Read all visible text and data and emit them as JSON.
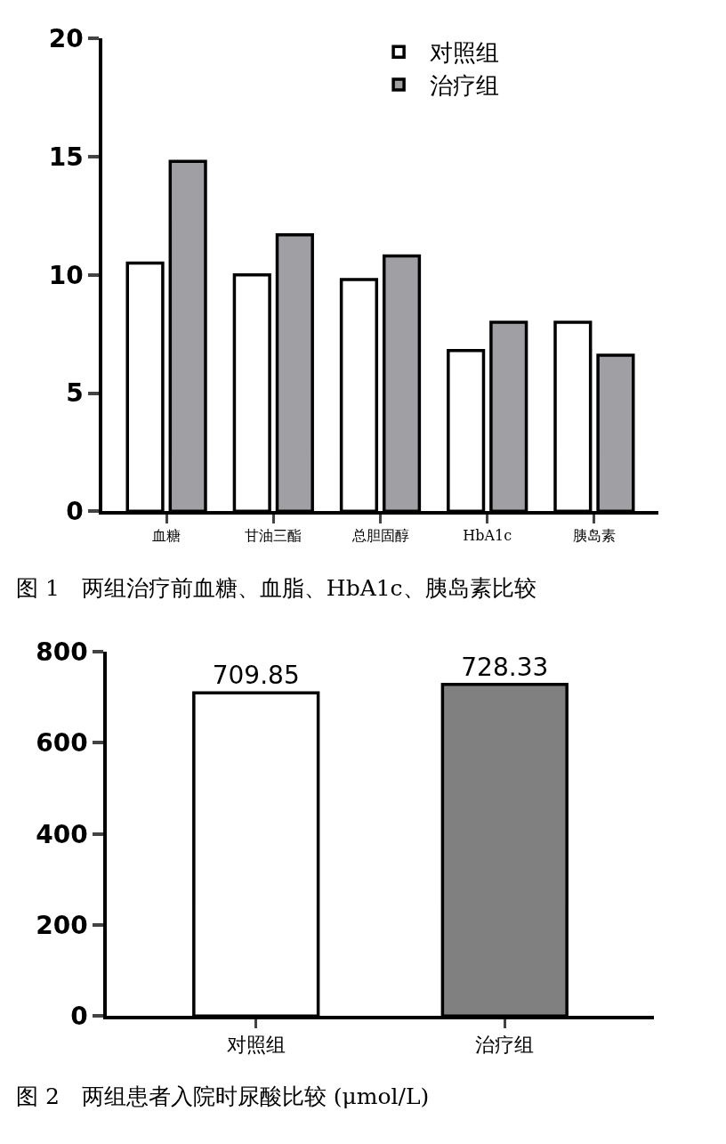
{
  "chart_data": [
    {
      "type": "bar",
      "categories": [
        "血糖",
        "甘油三酯",
        "总胆固醇",
        "HbA1c",
        "胰岛素"
      ],
      "series": [
        {
          "name": "对照组",
          "color": "#ffffff",
          "values": [
            10.5,
            10.0,
            9.8,
            6.8,
            8.0
          ]
        },
        {
          "name": "治疗组",
          "color": "#a0a0a4",
          "values": [
            14.8,
            11.7,
            10.8,
            8.0,
            6.6
          ]
        }
      ],
      "ylim": [
        0,
        20
      ],
      "yticks": [
        0,
        5,
        10,
        15,
        20
      ],
      "legend": "top",
      "annotations": [
        "图 1　两组治疗前血糖、血脂、HbA1c、胰岛素比较"
      ]
    },
    {
      "type": "bar",
      "categories": [
        "对照组",
        "治疗组"
      ],
      "values": [
        709.85,
        728.33
      ],
      "colors": [
        "#ffffff",
        "#808080"
      ],
      "ylim": [
        0,
        800
      ],
      "yticks": [
        0,
        200,
        400,
        600,
        800
      ],
      "data_labels": true,
      "legend": false,
      "annotations": [
        "图 2　两组患者入院时尿酸比较 (μmol/L)"
      ]
    }
  ]
}
